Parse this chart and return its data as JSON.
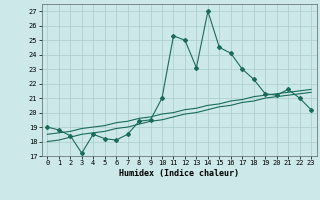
{
  "title": "",
  "xlabel": "Humidex (Indice chaleur)",
  "ylabel": "",
  "bg_color": "#cce8e8",
  "grid_color": "#aacccc",
  "line_color": "#1a6b5a",
  "ylim": [
    17,
    27.5
  ],
  "xlim": [
    -0.5,
    23.5
  ],
  "yticks": [
    17,
    18,
    19,
    20,
    21,
    22,
    23,
    24,
    25,
    26,
    27
  ],
  "xticks": [
    0,
    1,
    2,
    3,
    4,
    5,
    6,
    7,
    8,
    9,
    10,
    11,
    12,
    13,
    14,
    15,
    16,
    17,
    18,
    19,
    20,
    21,
    22,
    23
  ],
  "line1_x": [
    0,
    1,
    2,
    3,
    4,
    5,
    6,
    7,
    8,
    9,
    10,
    11,
    12,
    13,
    14,
    15,
    16,
    17,
    18,
    19,
    20,
    21,
    22,
    23
  ],
  "line1_y": [
    19.0,
    18.8,
    18.4,
    17.2,
    18.5,
    18.2,
    18.1,
    18.5,
    19.4,
    19.5,
    21.0,
    25.3,
    25.0,
    23.1,
    27.0,
    24.5,
    24.1,
    23.0,
    22.3,
    21.3,
    21.2,
    21.6,
    21.0,
    20.2
  ],
  "line2_x": [
    0,
    1,
    2,
    3,
    4,
    5,
    6,
    7,
    8,
    9,
    10,
    11,
    12,
    13,
    14,
    15,
    16,
    17,
    18,
    19,
    20,
    21,
    22,
    23
  ],
  "line2_y": [
    18.0,
    18.1,
    18.3,
    18.5,
    18.6,
    18.7,
    18.9,
    19.0,
    19.2,
    19.4,
    19.5,
    19.7,
    19.9,
    20.0,
    20.2,
    20.4,
    20.5,
    20.7,
    20.8,
    21.0,
    21.1,
    21.2,
    21.3,
    21.4
  ],
  "line3_x": [
    0,
    1,
    2,
    3,
    4,
    5,
    6,
    7,
    8,
    9,
    10,
    11,
    12,
    13,
    14,
    15,
    16,
    17,
    18,
    19,
    20,
    21,
    22,
    23
  ],
  "line3_y": [
    18.5,
    18.6,
    18.7,
    18.9,
    19.0,
    19.1,
    19.3,
    19.4,
    19.6,
    19.7,
    19.9,
    20.0,
    20.2,
    20.3,
    20.5,
    20.6,
    20.8,
    20.9,
    21.1,
    21.2,
    21.3,
    21.4,
    21.5,
    21.6
  ]
}
